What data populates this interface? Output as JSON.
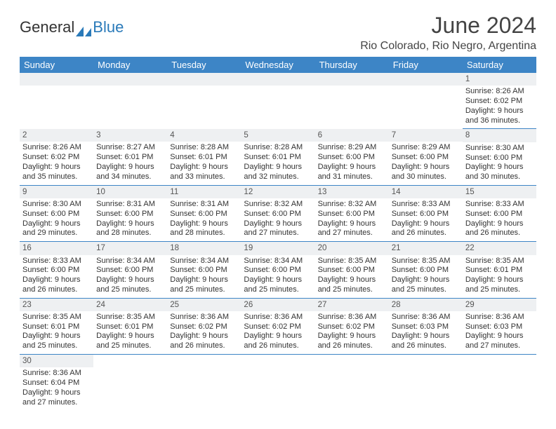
{
  "brand": {
    "general": "General",
    "blue": "Blue"
  },
  "title": "June 2024",
  "location": "Rio Colorado, Rio Negro, Argentina",
  "colors": {
    "header_bg": "#3d85c6",
    "header_text": "#ffffff",
    "daynum_bg": "#eef0f2",
    "row_border": "#3d85c6",
    "logo_blue": "#2a7ab9"
  },
  "day_labels": [
    "Sunday",
    "Monday",
    "Tuesday",
    "Wednesday",
    "Thursday",
    "Friday",
    "Saturday"
  ],
  "weeks": [
    [
      null,
      null,
      null,
      null,
      null,
      null,
      {
        "n": "1",
        "sr": "Sunrise: 8:26 AM",
        "ss": "Sunset: 6:02 PM",
        "dl1": "Daylight: 9 hours",
        "dl2": "and 36 minutes."
      }
    ],
    [
      {
        "n": "2",
        "sr": "Sunrise: 8:26 AM",
        "ss": "Sunset: 6:02 PM",
        "dl1": "Daylight: 9 hours",
        "dl2": "and 35 minutes."
      },
      {
        "n": "3",
        "sr": "Sunrise: 8:27 AM",
        "ss": "Sunset: 6:01 PM",
        "dl1": "Daylight: 9 hours",
        "dl2": "and 34 minutes."
      },
      {
        "n": "4",
        "sr": "Sunrise: 8:28 AM",
        "ss": "Sunset: 6:01 PM",
        "dl1": "Daylight: 9 hours",
        "dl2": "and 33 minutes."
      },
      {
        "n": "5",
        "sr": "Sunrise: 8:28 AM",
        "ss": "Sunset: 6:01 PM",
        "dl1": "Daylight: 9 hours",
        "dl2": "and 32 minutes."
      },
      {
        "n": "6",
        "sr": "Sunrise: 8:29 AM",
        "ss": "Sunset: 6:00 PM",
        "dl1": "Daylight: 9 hours",
        "dl2": "and 31 minutes."
      },
      {
        "n": "7",
        "sr": "Sunrise: 8:29 AM",
        "ss": "Sunset: 6:00 PM",
        "dl1": "Daylight: 9 hours",
        "dl2": "and 30 minutes."
      },
      {
        "n": "8",
        "sr": "Sunrise: 8:30 AM",
        "ss": "Sunset: 6:00 PM",
        "dl1": "Daylight: 9 hours",
        "dl2": "and 30 minutes."
      }
    ],
    [
      {
        "n": "9",
        "sr": "Sunrise: 8:30 AM",
        "ss": "Sunset: 6:00 PM",
        "dl1": "Daylight: 9 hours",
        "dl2": "and 29 minutes."
      },
      {
        "n": "10",
        "sr": "Sunrise: 8:31 AM",
        "ss": "Sunset: 6:00 PM",
        "dl1": "Daylight: 9 hours",
        "dl2": "and 28 minutes."
      },
      {
        "n": "11",
        "sr": "Sunrise: 8:31 AM",
        "ss": "Sunset: 6:00 PM",
        "dl1": "Daylight: 9 hours",
        "dl2": "and 28 minutes."
      },
      {
        "n": "12",
        "sr": "Sunrise: 8:32 AM",
        "ss": "Sunset: 6:00 PM",
        "dl1": "Daylight: 9 hours",
        "dl2": "and 27 minutes."
      },
      {
        "n": "13",
        "sr": "Sunrise: 8:32 AM",
        "ss": "Sunset: 6:00 PM",
        "dl1": "Daylight: 9 hours",
        "dl2": "and 27 minutes."
      },
      {
        "n": "14",
        "sr": "Sunrise: 8:33 AM",
        "ss": "Sunset: 6:00 PM",
        "dl1": "Daylight: 9 hours",
        "dl2": "and 26 minutes."
      },
      {
        "n": "15",
        "sr": "Sunrise: 8:33 AM",
        "ss": "Sunset: 6:00 PM",
        "dl1": "Daylight: 9 hours",
        "dl2": "and 26 minutes."
      }
    ],
    [
      {
        "n": "16",
        "sr": "Sunrise: 8:33 AM",
        "ss": "Sunset: 6:00 PM",
        "dl1": "Daylight: 9 hours",
        "dl2": "and 26 minutes."
      },
      {
        "n": "17",
        "sr": "Sunrise: 8:34 AM",
        "ss": "Sunset: 6:00 PM",
        "dl1": "Daylight: 9 hours",
        "dl2": "and 25 minutes."
      },
      {
        "n": "18",
        "sr": "Sunrise: 8:34 AM",
        "ss": "Sunset: 6:00 PM",
        "dl1": "Daylight: 9 hours",
        "dl2": "and 25 minutes."
      },
      {
        "n": "19",
        "sr": "Sunrise: 8:34 AM",
        "ss": "Sunset: 6:00 PM",
        "dl1": "Daylight: 9 hours",
        "dl2": "and 25 minutes."
      },
      {
        "n": "20",
        "sr": "Sunrise: 8:35 AM",
        "ss": "Sunset: 6:00 PM",
        "dl1": "Daylight: 9 hours",
        "dl2": "and 25 minutes."
      },
      {
        "n": "21",
        "sr": "Sunrise: 8:35 AM",
        "ss": "Sunset: 6:00 PM",
        "dl1": "Daylight: 9 hours",
        "dl2": "and 25 minutes."
      },
      {
        "n": "22",
        "sr": "Sunrise: 8:35 AM",
        "ss": "Sunset: 6:01 PM",
        "dl1": "Daylight: 9 hours",
        "dl2": "and 25 minutes."
      }
    ],
    [
      {
        "n": "23",
        "sr": "Sunrise: 8:35 AM",
        "ss": "Sunset: 6:01 PM",
        "dl1": "Daylight: 9 hours",
        "dl2": "and 25 minutes."
      },
      {
        "n": "24",
        "sr": "Sunrise: 8:35 AM",
        "ss": "Sunset: 6:01 PM",
        "dl1": "Daylight: 9 hours",
        "dl2": "and 25 minutes."
      },
      {
        "n": "25",
        "sr": "Sunrise: 8:36 AM",
        "ss": "Sunset: 6:02 PM",
        "dl1": "Daylight: 9 hours",
        "dl2": "and 26 minutes."
      },
      {
        "n": "26",
        "sr": "Sunrise: 8:36 AM",
        "ss": "Sunset: 6:02 PM",
        "dl1": "Daylight: 9 hours",
        "dl2": "and 26 minutes."
      },
      {
        "n": "27",
        "sr": "Sunrise: 8:36 AM",
        "ss": "Sunset: 6:02 PM",
        "dl1": "Daylight: 9 hours",
        "dl2": "and 26 minutes."
      },
      {
        "n": "28",
        "sr": "Sunrise: 8:36 AM",
        "ss": "Sunset: 6:03 PM",
        "dl1": "Daylight: 9 hours",
        "dl2": "and 26 minutes."
      },
      {
        "n": "29",
        "sr": "Sunrise: 8:36 AM",
        "ss": "Sunset: 6:03 PM",
        "dl1": "Daylight: 9 hours",
        "dl2": "and 27 minutes."
      }
    ],
    [
      {
        "n": "30",
        "sr": "Sunrise: 8:36 AM",
        "ss": "Sunset: 6:04 PM",
        "dl1": "Daylight: 9 hours",
        "dl2": "and 27 minutes."
      },
      null,
      null,
      null,
      null,
      null,
      null
    ]
  ]
}
